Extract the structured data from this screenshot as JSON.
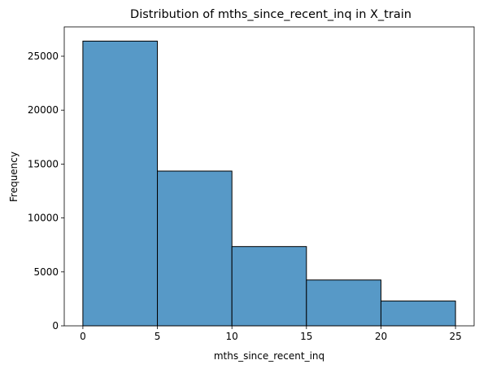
{
  "chart_data": {
    "type": "bar",
    "title": "Distribution of mths_since_recent_inq in X_train",
    "xlabel": "mths_since_recent_inq",
    "ylabel": "Frequency",
    "bins": [
      {
        "x0": 0,
        "x1": 5,
        "value": 26400
      },
      {
        "x0": 5,
        "x1": 10,
        "value": 14350
      },
      {
        "x0": 10,
        "x1": 15,
        "value": 7350
      },
      {
        "x0": 15,
        "x1": 20,
        "value": 4250
      },
      {
        "x0": 20,
        "x1": 25,
        "value": 2300
      }
    ],
    "xlim": [
      -1.25,
      26.25
    ],
    "ylim": [
      0,
      27720
    ],
    "xticks": [
      0,
      5,
      10,
      15,
      20,
      25
    ],
    "yticks": [
      0,
      5000,
      10000,
      15000,
      20000,
      25000
    ],
    "bar_color": "#5799C7",
    "edge_color": "#000000",
    "grid": false,
    "legend": "none"
  }
}
